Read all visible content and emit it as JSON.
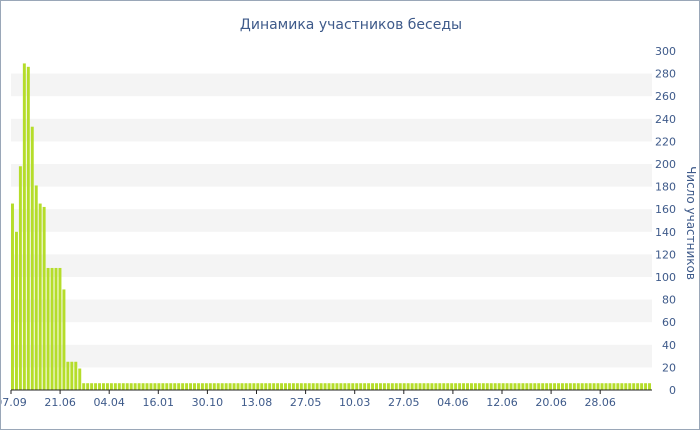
{
  "chart_data": {
    "type": "bar",
    "title": "Динамика участников беседы",
    "xlabel": "",
    "ylabel": "Число участников",
    "ylim": [
      0,
      300
    ],
    "y_ticks": [
      0,
      20,
      40,
      60,
      80,
      100,
      120,
      140,
      160,
      180,
      200,
      220,
      240,
      260,
      280,
      300
    ],
    "y_axis_position": "right",
    "x_tick_labels": [
      "07.09",
      "21.06",
      "04.04",
      "16.01",
      "30.10",
      "13.08",
      "27.05",
      "10.03",
      "27.05",
      "04.06",
      "12.06",
      "20.06",
      "28.06"
    ],
    "grid": "horizontal bands",
    "colors": {
      "bar": "#b5dd2a",
      "band": "#f4f4f4",
      "text": "#3e5a8a",
      "axis": "#222222"
    },
    "values": [
      165,
      140,
      198,
      289,
      286,
      233,
      181,
      165,
      162,
      108,
      108,
      108,
      108,
      89,
      25,
      25,
      25,
      19,
      6,
      6,
      6,
      6,
      6,
      6,
      6,
      6,
      6,
      6,
      6,
      6,
      6,
      6,
      6,
      6,
      6,
      6,
      6,
      6,
      6,
      6,
      6,
      6,
      6,
      6,
      6,
      6,
      6,
      6,
      6,
      6,
      6,
      6,
      6,
      6,
      6,
      6,
      6,
      6,
      6,
      6,
      6,
      6,
      6,
      6,
      6,
      6,
      6,
      6,
      6,
      6,
      6,
      6,
      6,
      6,
      6,
      6,
      6,
      6,
      6,
      6,
      6,
      6,
      6,
      6,
      6,
      6,
      6,
      6,
      6,
      6,
      6,
      6,
      6,
      6,
      6,
      6,
      6,
      6,
      6,
      6,
      6,
      6,
      6,
      6,
      6,
      6,
      6,
      6,
      6,
      6,
      6,
      6,
      6,
      6,
      6,
      6,
      6,
      6,
      6,
      6,
      6,
      6,
      6,
      6,
      6,
      6,
      6,
      6,
      6,
      6,
      6,
      6,
      6,
      6,
      6,
      6,
      6,
      6,
      6,
      6,
      6,
      6,
      6,
      6,
      6,
      6,
      6,
      6,
      6,
      6,
      6,
      6,
      6,
      6,
      6,
      6,
      6,
      6,
      6,
      6,
      6,
      6
    ]
  }
}
